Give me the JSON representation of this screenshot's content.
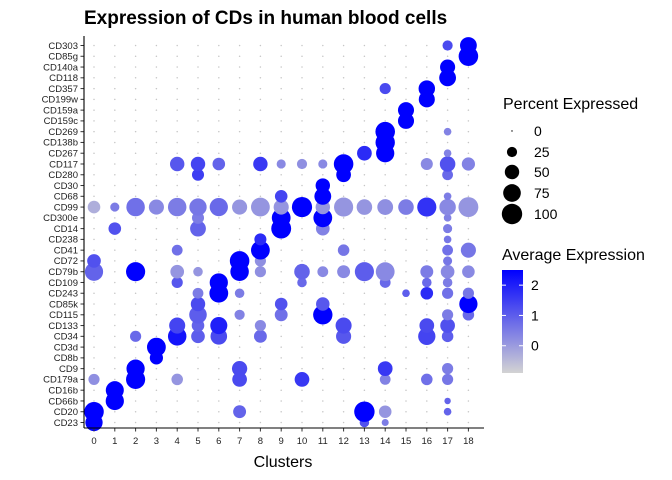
{
  "chart_data": {
    "type": "dotplot",
    "title": "Expression of CDs in human blood cells",
    "xlabel": "Clusters",
    "ylabel": "",
    "clusters": [
      "0",
      "1",
      "2",
      "3",
      "4",
      "5",
      "6",
      "7",
      "8",
      "9",
      "10",
      "11",
      "12",
      "13",
      "14",
      "15",
      "16",
      "17",
      "18"
    ],
    "genes": [
      "CD23",
      "CD20",
      "CD66b",
      "CD16b",
      "CD179a",
      "CD9",
      "CD8b",
      "CD3d",
      "CD34",
      "CD133",
      "CD115",
      "CD85k",
      "CD243",
      "CD109",
      "CD79b",
      "CD72",
      "CD41",
      "CD238",
      "CD14",
      "CD300e",
      "CD99",
      "CD68",
      "CD30",
      "CD280",
      "CD117",
      "CD267",
      "CD138b",
      "CD269",
      "CD159c",
      "CD159a",
      "CD199w",
      "CD357",
      "CD118",
      "CD140a",
      "CD85g",
      "CD303"
    ],
    "size_legend": {
      "title": "Percent Expressed",
      "values": [
        0,
        25,
        50,
        75,
        100
      ]
    },
    "color_legend": {
      "title": "Average Expression",
      "ticks": [
        0,
        1,
        2
      ],
      "range": [
        -0.9,
        2.5
      ],
      "low_color": "#d3d3d3",
      "high_color": "#0000ff"
    },
    "points": [
      {
        "gene": "CD23",
        "cluster": "0",
        "pct": 72,
        "avg": 2.5
      },
      {
        "gene": "CD23",
        "cluster": "13",
        "pct": 22,
        "avg": 1.2
      },
      {
        "gene": "CD23",
        "cluster": "14",
        "pct": 12,
        "avg": 0.5
      },
      {
        "gene": "CD20",
        "cluster": "0",
        "pct": 92,
        "avg": 2.5
      },
      {
        "gene": "CD20",
        "cluster": "7",
        "pct": 40,
        "avg": 0.9
      },
      {
        "gene": "CD20",
        "cluster": "13",
        "pct": 100,
        "avg": 2.5
      },
      {
        "gene": "CD20",
        "cluster": "14",
        "pct": 38,
        "avg": 0.1
      },
      {
        "gene": "CD20",
        "cluster": "17",
        "pct": 14,
        "avg": 0.9
      },
      {
        "gene": "CD66b",
        "cluster": "1",
        "pct": 80,
        "avg": 2.5
      },
      {
        "gene": "CD66b",
        "cluster": "17",
        "pct": 10,
        "avg": 0.9
      },
      {
        "gene": "CD16b",
        "cluster": "1",
        "pct": 78,
        "avg": 2.5
      },
      {
        "gene": "CD179a",
        "cluster": "0",
        "pct": 30,
        "avg": 0.2
      },
      {
        "gene": "CD179a",
        "cluster": "2",
        "pct": 88,
        "avg": 2.5
      },
      {
        "gene": "CD179a",
        "cluster": "4",
        "pct": 32,
        "avg": 0.1
      },
      {
        "gene": "CD179a",
        "cluster": "7",
        "pct": 52,
        "avg": 1.3
      },
      {
        "gene": "CD179a",
        "cluster": "10",
        "pct": 52,
        "avg": 1.6
      },
      {
        "gene": "CD179a",
        "cluster": "14",
        "pct": 28,
        "avg": 0.4
      },
      {
        "gene": "CD179a",
        "cluster": "16",
        "pct": 32,
        "avg": 0.7
      },
      {
        "gene": "CD179a",
        "cluster": "17",
        "pct": 30,
        "avg": 0.6
      },
      {
        "gene": "CD9",
        "cluster": "2",
        "pct": 80,
        "avg": 2.5
      },
      {
        "gene": "CD9",
        "cluster": "7",
        "pct": 56,
        "avg": 1.3
      },
      {
        "gene": "CD9",
        "cluster": "14",
        "pct": 52,
        "avg": 1.6
      },
      {
        "gene": "CD9",
        "cluster": "17",
        "pct": 30,
        "avg": 0.5
      },
      {
        "gene": "CD8b",
        "cluster": "3",
        "pct": 42,
        "avg": 2.5
      },
      {
        "gene": "CD3d",
        "cluster": "3",
        "pct": 85,
        "avg": 2.5
      },
      {
        "gene": "CD34",
        "cluster": "2",
        "pct": 30,
        "avg": 0.8
      },
      {
        "gene": "CD34",
        "cluster": "4",
        "pct": 82,
        "avg": 2.2
      },
      {
        "gene": "CD34",
        "cluster": "5",
        "pct": 45,
        "avg": 1.0
      },
      {
        "gene": "CD34",
        "cluster": "6",
        "pct": 66,
        "avg": 1.3
      },
      {
        "gene": "CD34",
        "cluster": "8",
        "pct": 40,
        "avg": 0.8
      },
      {
        "gene": "CD34",
        "cluster": "12",
        "pct": 55,
        "avg": 1.1
      },
      {
        "gene": "CD34",
        "cluster": "16",
        "pct": 72,
        "avg": 1.4
      },
      {
        "gene": "CD34",
        "cluster": "17",
        "pct": 32,
        "avg": 1.0
      },
      {
        "gene": "CD133",
        "cluster": "4",
        "pct": 62,
        "avg": 1.4
      },
      {
        "gene": "CD133",
        "cluster": "5",
        "pct": 38,
        "avg": 0.9
      },
      {
        "gene": "CD133",
        "cluster": "6",
        "pct": 70,
        "avg": 2.0
      },
      {
        "gene": "CD133",
        "cluster": "8",
        "pct": 30,
        "avg": 0.3
      },
      {
        "gene": "CD133",
        "cluster": "12",
        "pct": 62,
        "avg": 1.3
      },
      {
        "gene": "CD133",
        "cluster": "16",
        "pct": 52,
        "avg": 1.3
      },
      {
        "gene": "CD133",
        "cluster": "17",
        "pct": 52,
        "avg": 1.2
      },
      {
        "gene": "CD115",
        "cluster": "5",
        "pct": 74,
        "avg": 1.0
      },
      {
        "gene": "CD115",
        "cluster": "7",
        "pct": 25,
        "avg": 0.4
      },
      {
        "gene": "CD115",
        "cluster": "9",
        "pct": 40,
        "avg": 0.7
      },
      {
        "gene": "CD115",
        "cluster": "11",
        "pct": 90,
        "avg": 2.5
      },
      {
        "gene": "CD115",
        "cluster": "17",
        "pct": 30,
        "avg": 0.5
      },
      {
        "gene": "CD115",
        "cluster": "18",
        "pct": 32,
        "avg": 0.8
      },
      {
        "gene": "CD85k",
        "cluster": "5",
        "pct": 50,
        "avg": 1.3
      },
      {
        "gene": "CD85k",
        "cluster": "9",
        "pct": 38,
        "avg": 1.2
      },
      {
        "gene": "CD85k",
        "cluster": "11",
        "pct": 44,
        "avg": 1.1
      },
      {
        "gene": "CD85k",
        "cluster": "18",
        "pct": 80,
        "avg": 2.5
      },
      {
        "gene": "CD243",
        "cluster": "5",
        "pct": 28,
        "avg": 0.5
      },
      {
        "gene": "CD243",
        "cluster": "6",
        "pct": 85,
        "avg": 2.5
      },
      {
        "gene": "CD243",
        "cluster": "7",
        "pct": 22,
        "avg": 0.5
      },
      {
        "gene": "CD243",
        "cluster": "15",
        "pct": 14,
        "avg": 1.0
      },
      {
        "gene": "CD243",
        "cluster": "16",
        "pct": 38,
        "avg": 1.8
      },
      {
        "gene": "CD243",
        "cluster": "17",
        "pct": 30,
        "avg": 0.7
      },
      {
        "gene": "CD243",
        "cluster": "18",
        "pct": 30,
        "avg": 0.6
      },
      {
        "gene": "CD109",
        "cluster": "4",
        "pct": 30,
        "avg": 1.1
      },
      {
        "gene": "CD109",
        "cluster": "6",
        "pct": 80,
        "avg": 2.5
      },
      {
        "gene": "CD109",
        "cluster": "10",
        "pct": 22,
        "avg": 0.8
      },
      {
        "gene": "CD109",
        "cluster": "14",
        "pct": 28,
        "avg": 0.8
      },
      {
        "gene": "CD109",
        "cluster": "16",
        "pct": 22,
        "avg": 0.8
      },
      {
        "gene": "CD109",
        "cluster": "17",
        "pct": 22,
        "avg": 0.5
      },
      {
        "gene": "CD79b",
        "cluster": "0",
        "pct": 80,
        "avg": 0.9
      },
      {
        "gene": "CD79b",
        "cluster": "2",
        "pct": 88,
        "avg": 2.5
      },
      {
        "gene": "CD79b",
        "cluster": "4",
        "pct": 45,
        "avg": 0.1
      },
      {
        "gene": "CD79b",
        "cluster": "5",
        "pct": 22,
        "avg": 0.1
      },
      {
        "gene": "CD79b",
        "cluster": "7",
        "pct": 82,
        "avg": 2.5
      },
      {
        "gene": "CD79b",
        "cluster": "8",
        "pct": 30,
        "avg": 0.2
      },
      {
        "gene": "CD79b",
        "cluster": "10",
        "pct": 58,
        "avg": 0.9
      },
      {
        "gene": "CD79b",
        "cluster": "11",
        "pct": 28,
        "avg": 0.3
      },
      {
        "gene": "CD79b",
        "cluster": "12",
        "pct": 40,
        "avg": 0.3
      },
      {
        "gene": "CD79b",
        "cluster": "13",
        "pct": 88,
        "avg": 1.0
      },
      {
        "gene": "CD79b",
        "cluster": "14",
        "pct": 85,
        "avg": 0.3
      },
      {
        "gene": "CD79b",
        "cluster": "16",
        "pct": 40,
        "avg": 0.5
      },
      {
        "gene": "CD79b",
        "cluster": "17",
        "pct": 45,
        "avg": 0.3
      },
      {
        "gene": "CD79b",
        "cluster": "18",
        "pct": 38,
        "avg": 0.3
      },
      {
        "gene": "CD72",
        "cluster": "0",
        "pct": 45,
        "avg": 1.2
      },
      {
        "gene": "CD72",
        "cluster": "7",
        "pct": 92,
        "avg": 2.5
      },
      {
        "gene": "CD72",
        "cluster": "8",
        "pct": 30,
        "avg": 0.2
      },
      {
        "gene": "CD72",
        "cluster": "17",
        "pct": 20,
        "avg": 0.6
      },
      {
        "gene": "CD41",
        "cluster": "4",
        "pct": 28,
        "avg": 0.7
      },
      {
        "gene": "CD41",
        "cluster": "8",
        "pct": 85,
        "avg": 2.5
      },
      {
        "gene": "CD41",
        "cluster": "12",
        "pct": 32,
        "avg": 0.6
      },
      {
        "gene": "CD41",
        "cluster": "17",
        "pct": 28,
        "avg": 0.7
      },
      {
        "gene": "CD41",
        "cluster": "18",
        "pct": 55,
        "avg": 0.6
      },
      {
        "gene": "CD238",
        "cluster": "8",
        "pct": 35,
        "avg": 1.8
      },
      {
        "gene": "CD238",
        "cluster": "17",
        "pct": 14,
        "avg": 0.6
      },
      {
        "gene": "CD14",
        "cluster": "1",
        "pct": 38,
        "avg": 1.2
      },
      {
        "gene": "CD14",
        "cluster": "5",
        "pct": 60,
        "avg": 0.9
      },
      {
        "gene": "CD14",
        "cluster": "9",
        "pct": 95,
        "avg": 2.5
      },
      {
        "gene": "CD14",
        "cluster": "11",
        "pct": 45,
        "avg": 0.4
      },
      {
        "gene": "CD14",
        "cluster": "17",
        "pct": 20,
        "avg": 0.5
      },
      {
        "gene": "CD300e",
        "cluster": "5",
        "pct": 35,
        "avg": 0.5
      },
      {
        "gene": "CD300e",
        "cluster": "9",
        "pct": 85,
        "avg": 2.5
      },
      {
        "gene": "CD300e",
        "cluster": "11",
        "pct": 85,
        "avg": 2.5
      },
      {
        "gene": "CD300e",
        "cluster": "17",
        "pct": 14,
        "avg": 0.4
      },
      {
        "gene": "CD99",
        "cluster": "0",
        "pct": 38,
        "avg": -0.3
      },
      {
        "gene": "CD99",
        "cluster": "1",
        "pct": 20,
        "avg": 0.5
      },
      {
        "gene": "CD99",
        "cluster": "2",
        "pct": 82,
        "avg": 0.7
      },
      {
        "gene": "CD99",
        "cluster": "3",
        "pct": 55,
        "avg": 0.3
      },
      {
        "gene": "CD99",
        "cluster": "4",
        "pct": 82,
        "avg": 0.5
      },
      {
        "gene": "CD99",
        "cluster": "5",
        "pct": 72,
        "avg": 0.6
      },
      {
        "gene": "CD99",
        "cluster": "6",
        "pct": 80,
        "avg": 0.8
      },
      {
        "gene": "CD99",
        "cluster": "7",
        "pct": 55,
        "avg": 0.1
      },
      {
        "gene": "CD99",
        "cluster": "8",
        "pct": 85,
        "avg": 0.1
      },
      {
        "gene": "CD99",
        "cluster": "9",
        "pct": 55,
        "avg": 0.1
      },
      {
        "gene": "CD99",
        "cluster": "10",
        "pct": 98,
        "avg": 2.5
      },
      {
        "gene": "CD99",
        "cluster": "11",
        "pct": 50,
        "avg": 0.1
      },
      {
        "gene": "CD99",
        "cluster": "12",
        "pct": 88,
        "avg": 0.1
      },
      {
        "gene": "CD99",
        "cluster": "13",
        "pct": 58,
        "avg": 0.1
      },
      {
        "gene": "CD99",
        "cluster": "14",
        "pct": 60,
        "avg": 0.2
      },
      {
        "gene": "CD99",
        "cluster": "15",
        "pct": 58,
        "avg": 0.5
      },
      {
        "gene": "CD99",
        "cluster": "16",
        "pct": 88,
        "avg": 1.7
      },
      {
        "gene": "CD99",
        "cluster": "17",
        "pct": 65,
        "avg": 0.3
      },
      {
        "gene": "CD99",
        "cluster": "18",
        "pct": 95,
        "avg": 0.1
      },
      {
        "gene": "CD68",
        "cluster": "9",
        "pct": 38,
        "avg": 1.4
      },
      {
        "gene": "CD68",
        "cluster": "11",
        "pct": 68,
        "avg": 2.5
      },
      {
        "gene": "CD68",
        "cluster": "17",
        "pct": 14,
        "avg": 0.5
      },
      {
        "gene": "CD30",
        "cluster": "11",
        "pct": 50,
        "avg": 2.5
      },
      {
        "gene": "CD280",
        "cluster": "5",
        "pct": 35,
        "avg": 1.5
      },
      {
        "gene": "CD280",
        "cluster": "12",
        "pct": 52,
        "avg": 2.5
      },
      {
        "gene": "CD280",
        "cluster": "17",
        "pct": 28,
        "avg": 0.8
      },
      {
        "gene": "CD117",
        "cluster": "4",
        "pct": 50,
        "avg": 1.1
      },
      {
        "gene": "CD117",
        "cluster": "5",
        "pct": 50,
        "avg": 1.4
      },
      {
        "gene": "CD117",
        "cluster": "6",
        "pct": 38,
        "avg": 0.9
      },
      {
        "gene": "CD117",
        "cluster": "8",
        "pct": 50,
        "avg": 1.6
      },
      {
        "gene": "CD117",
        "cluster": "9",
        "pct": 20,
        "avg": 0.3
      },
      {
        "gene": "CD117",
        "cluster": "10",
        "pct": 25,
        "avg": 0.2
      },
      {
        "gene": "CD117",
        "cluster": "11",
        "pct": 20,
        "avg": 0.3
      },
      {
        "gene": "CD117",
        "cluster": "12",
        "pct": 92,
        "avg": 2.5
      },
      {
        "gene": "CD117",
        "cluster": "16",
        "pct": 35,
        "avg": 0.3
      },
      {
        "gene": "CD117",
        "cluster": "17",
        "pct": 58,
        "avg": 1.2
      },
      {
        "gene": "CD117",
        "cluster": "18",
        "pct": 42,
        "avg": 0.4
      },
      {
        "gene": "CD267",
        "cluster": "13",
        "pct": 52,
        "avg": 1.8
      },
      {
        "gene": "CD267",
        "cluster": "14",
        "pct": 80,
        "avg": 2.5
      },
      {
        "gene": "CD267",
        "cluster": "17",
        "pct": 14,
        "avg": 0.4
      },
      {
        "gene": "CD138b",
        "cluster": "14",
        "pct": 90,
        "avg": 2.5
      },
      {
        "gene": "CD269",
        "cluster": "14",
        "pct": 92,
        "avg": 2.5
      },
      {
        "gene": "CD269",
        "cluster": "17",
        "pct": 14,
        "avg": 0.4
      },
      {
        "gene": "CD159c",
        "cluster": "15",
        "pct": 62,
        "avg": 2.5
      },
      {
        "gene": "CD159a",
        "cluster": "15",
        "pct": 62,
        "avg": 2.5
      },
      {
        "gene": "CD199w",
        "cluster": "16",
        "pct": 62,
        "avg": 2.5
      },
      {
        "gene": "CD357",
        "cluster": "14",
        "pct": 30,
        "avg": 1.3
      },
      {
        "gene": "CD357",
        "cluster": "16",
        "pct": 65,
        "avg": 2.5
      },
      {
        "gene": "CD118",
        "cluster": "17",
        "pct": 68,
        "avg": 2.5
      },
      {
        "gene": "CD140a",
        "cluster": "17",
        "pct": 55,
        "avg": 2.5
      },
      {
        "gene": "CD85g",
        "cluster": "18",
        "pct": 92,
        "avg": 2.5
      },
      {
        "gene": "CD303",
        "cluster": "17",
        "pct": 25,
        "avg": 1.3
      },
      {
        "gene": "CD303",
        "cluster": "18",
        "pct": 68,
        "avg": 2.5
      }
    ]
  }
}
